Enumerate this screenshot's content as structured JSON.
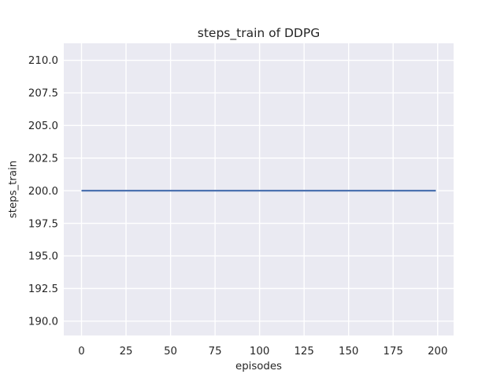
{
  "chart_data": {
    "type": "line",
    "title": "steps_train of DDPG",
    "xlabel": "episodes",
    "ylabel": "steps_train",
    "xlim": [
      -9.95,
      208.95
    ],
    "ylim": [
      188.9,
      211.3
    ],
    "xticks": [
      0,
      25,
      50,
      75,
      100,
      125,
      150,
      175,
      200
    ],
    "xtick_labels": [
      "0",
      "25",
      "50",
      "75",
      "100",
      "125",
      "150",
      "175",
      "200"
    ],
    "yticks": [
      190.0,
      192.5,
      195.0,
      197.5,
      200.0,
      202.5,
      205.0,
      207.5,
      210.0
    ],
    "ytick_labels": [
      "190.0",
      "192.5",
      "195.0",
      "197.5",
      "200.0",
      "202.5",
      "205.0",
      "207.5",
      "210.0"
    ],
    "grid": true,
    "legend": false,
    "series": [
      {
        "name": "steps_train",
        "color": "#4C72B0",
        "x": [
          0,
          199
        ],
        "y": [
          200,
          200
        ]
      }
    ],
    "style": {
      "figure_background": "#FFFFFF",
      "axes_background": "#EAEAF2",
      "grid_color": "#FFFFFF",
      "text_color": "#262626"
    }
  }
}
